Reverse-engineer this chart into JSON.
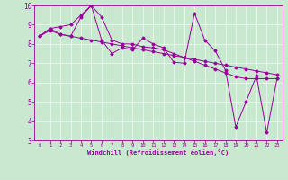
{
  "xlabel": "Windchill (Refroidissement éolien,°C)",
  "background_color": "#c8e8d0",
  "line_color": "#990099",
  "x_min": -0.5,
  "x_max": 23.5,
  "y_min": 3,
  "y_max": 10,
  "series": [
    [
      8.4,
      8.8,
      8.5,
      8.4,
      9.4,
      10.0,
      8.2,
      7.5,
      7.8,
      7.7,
      8.3,
      8.0,
      7.8,
      7.05,
      7.0,
      9.6,
      8.2,
      7.65,
      6.65,
      3.7,
      5.0,
      6.35,
      3.4,
      6.2
    ],
    [
      8.4,
      8.8,
      8.9,
      9.0,
      9.5,
      10.0,
      9.4,
      8.2,
      8.0,
      8.0,
      7.85,
      7.8,
      7.7,
      7.5,
      7.3,
      7.1,
      6.9,
      6.7,
      6.5,
      6.3,
      6.2,
      6.2,
      6.2,
      6.2
    ],
    [
      8.4,
      8.7,
      8.5,
      8.4,
      8.3,
      8.2,
      8.1,
      8.0,
      7.9,
      7.8,
      7.7,
      7.6,
      7.5,
      7.4,
      7.3,
      7.2,
      7.1,
      7.0,
      6.9,
      6.8,
      6.7,
      6.6,
      6.5,
      6.4
    ]
  ],
  "grid_color": "#ffffff",
  "tick_color": "#990099",
  "label_color": "#990099",
  "marker": "D",
  "marker_size": 1.5,
  "line_width": 0.7,
  "x_ticks": [
    0,
    1,
    2,
    3,
    4,
    5,
    6,
    7,
    8,
    9,
    10,
    11,
    12,
    13,
    14,
    15,
    16,
    17,
    18,
    19,
    20,
    21,
    22,
    23
  ],
  "y_ticks": [
    3,
    4,
    5,
    6,
    7,
    8,
    9,
    10
  ],
  "x_tick_fontsize": 4.0,
  "y_tick_fontsize": 5.5,
  "xlabel_fontsize": 5.0
}
